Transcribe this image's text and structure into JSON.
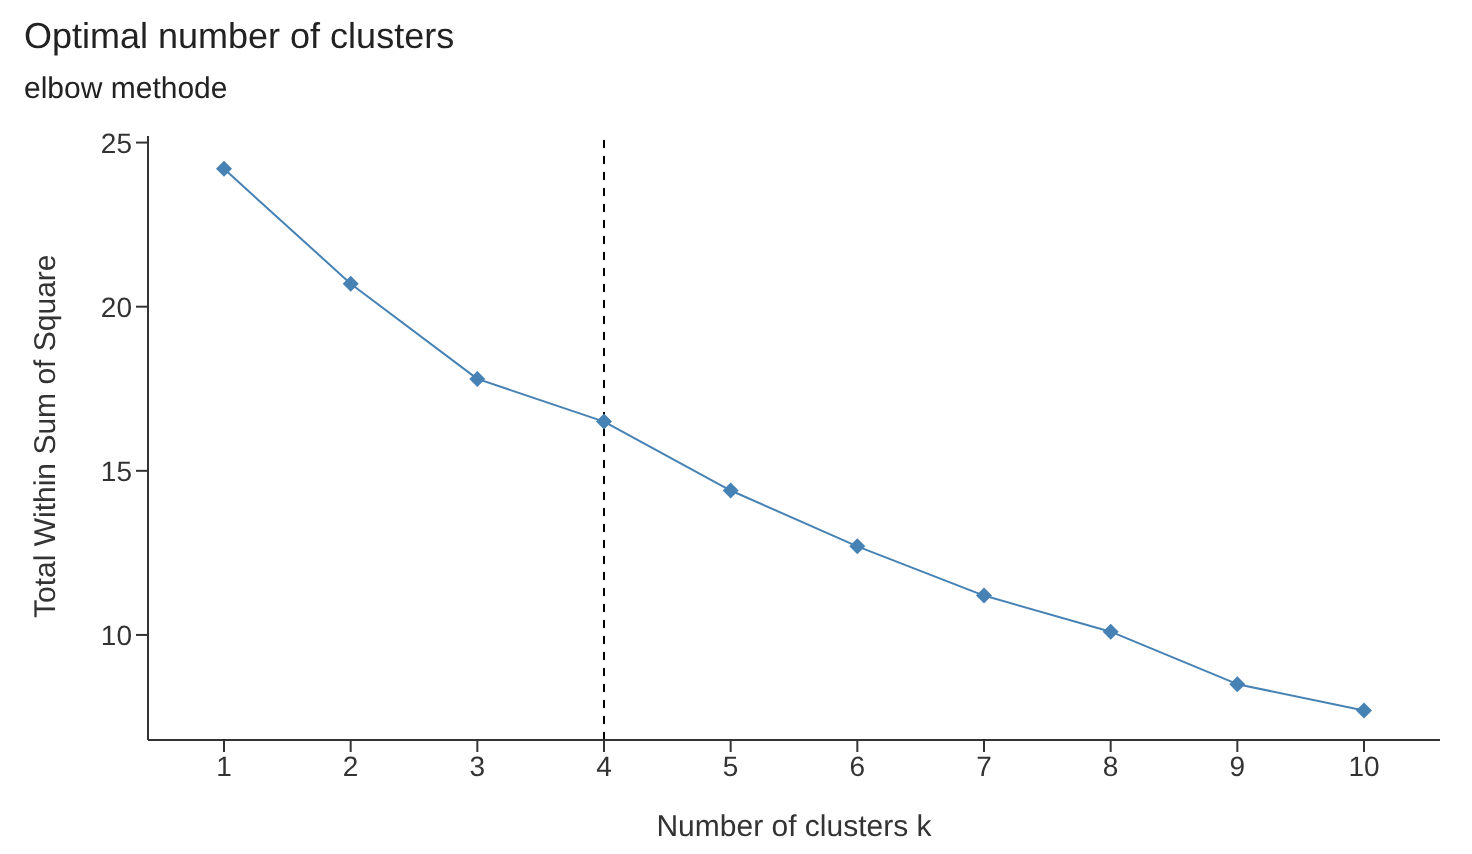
{
  "chart_data": {
    "type": "line",
    "title": "Optimal number of clusters",
    "subtitle": "elbow methode",
    "xlabel": "Number of clusters k",
    "ylabel": "Total Within Sum of Square",
    "categories": [
      "1",
      "2",
      "3",
      "4",
      "5",
      "6",
      "7",
      "8",
      "9",
      "10"
    ],
    "series": [
      {
        "color": "#4682b4",
        "values": [
          24.2,
          20.7,
          17.8,
          16.5,
          14.4,
          12.7,
          11.2,
          10.1,
          8.5,
          7.7
        ]
      }
    ],
    "ylim": [
      6.8,
      25.2
    ],
    "yticks": [
      10,
      15,
      20,
      25
    ],
    "grid": false,
    "legend": false,
    "marker": "diamond",
    "line_style": "solid",
    "ref_lines": [
      {
        "axis": "x",
        "value": "4",
        "color": "#000000",
        "line_style": "dashed"
      }
    ]
  }
}
